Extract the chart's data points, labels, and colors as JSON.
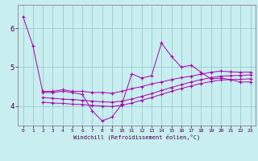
{
  "xlabel": "Windchill (Refroidissement éolien,°C)",
  "background_color": "#c8eef0",
  "grid_color": "#99cccc",
  "line_color": "#aa00aa",
  "spine_color": "#886688",
  "tick_color": "#440044",
  "xlim": [
    -0.5,
    23.5
  ],
  "ylim": [
    3.5,
    6.6
  ],
  "yticks": [
    4,
    5,
    6
  ],
  "xticks": [
    0,
    1,
    2,
    3,
    4,
    5,
    6,
    7,
    8,
    9,
    10,
    11,
    12,
    13,
    14,
    15,
    16,
    17,
    18,
    19,
    20,
    21,
    22,
    23
  ],
  "series1_x": [
    0,
    1,
    2,
    3,
    4,
    5,
    6,
    7,
    8,
    9,
    10,
    11,
    12,
    13,
    14,
    15,
    16,
    17,
    18,
    19,
    20,
    21,
    22,
    23
  ],
  "series1_y": [
    6.3,
    5.55,
    4.35,
    4.35,
    4.38,
    4.35,
    4.3,
    3.88,
    3.62,
    3.72,
    4.05,
    4.83,
    4.72,
    4.78,
    5.62,
    5.28,
    5.0,
    5.05,
    4.87,
    4.7,
    4.72,
    4.68,
    4.62,
    4.62
  ],
  "series2_x": [
    2,
    3,
    4,
    5,
    6,
    7,
    8,
    9,
    10,
    11,
    12,
    13,
    14,
    15,
    16,
    17,
    18,
    19,
    20,
    21,
    22,
    23
  ],
  "series2_y": [
    4.38,
    4.38,
    4.42,
    4.38,
    4.38,
    4.35,
    4.35,
    4.33,
    4.38,
    4.45,
    4.5,
    4.57,
    4.62,
    4.68,
    4.73,
    4.77,
    4.82,
    4.87,
    4.9,
    4.88,
    4.87,
    4.87
  ],
  "series3_x": [
    2,
    3,
    4,
    5,
    6,
    7,
    8,
    9,
    10,
    11,
    12,
    13,
    14,
    15,
    16,
    17,
    18,
    19,
    20,
    21,
    22,
    23
  ],
  "series3_y": [
    4.22,
    4.2,
    4.18,
    4.17,
    4.15,
    4.13,
    4.11,
    4.1,
    4.13,
    4.18,
    4.25,
    4.32,
    4.4,
    4.48,
    4.55,
    4.62,
    4.68,
    4.73,
    4.77,
    4.78,
    4.79,
    4.8
  ],
  "series4_x": [
    2,
    3,
    4,
    5,
    6,
    7,
    8,
    9,
    10,
    11,
    12,
    13,
    14,
    15,
    16,
    17,
    18,
    19,
    20,
    21,
    22,
    23
  ],
  "series4_y": [
    4.1,
    4.08,
    4.07,
    4.05,
    4.04,
    4.02,
    4.0,
    3.99,
    4.02,
    4.08,
    4.15,
    4.22,
    4.3,
    4.38,
    4.45,
    4.52,
    4.58,
    4.63,
    4.67,
    4.68,
    4.69,
    4.7
  ]
}
